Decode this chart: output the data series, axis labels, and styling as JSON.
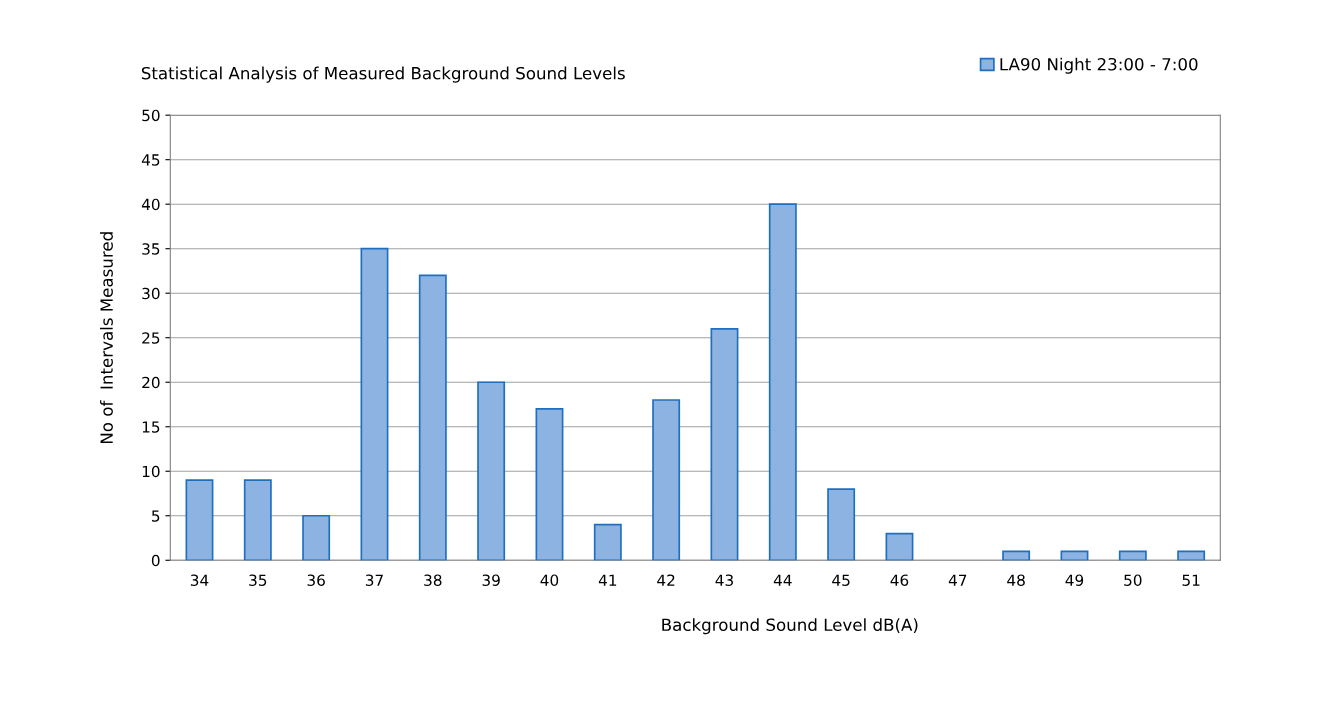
{
  "chart_data": {
    "type": "bar",
    "title": "Statistical Analysis of Measured Background Sound Levels",
    "xlabel": "Background Sound Level dB(A)",
    "ylabel": "No of  Intervals Measured",
    "categories": [
      "34",
      "35",
      "36",
      "37",
      "38",
      "39",
      "40",
      "41",
      "42",
      "43",
      "44",
      "45",
      "46",
      "47",
      "48",
      "49",
      "50",
      "51"
    ],
    "series": [
      {
        "name": "LA90 Night 23:00 - 7:00",
        "color": "#8db3e2",
        "values": [
          9,
          9,
          5,
          35,
          32,
          20,
          17,
          4,
          18,
          26,
          40,
          8,
          3,
          0,
          1,
          1,
          1,
          1
        ]
      }
    ],
    "ylim": [
      0,
      50
    ],
    "yticks": [
      0,
      5,
      10,
      15,
      20,
      25,
      30,
      35,
      40,
      45,
      50
    ],
    "grid": "y",
    "legend": "top right"
  }
}
